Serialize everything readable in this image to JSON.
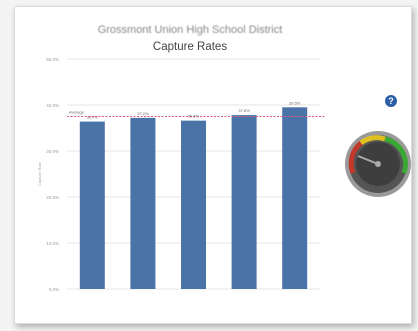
{
  "header": {
    "title_line1": "Grossmont Union High School District",
    "title_line2": "Capture Rates"
  },
  "help_button": {
    "icon": "help-icon",
    "label": "?"
  },
  "gauge": {
    "icon": "gauge-icon",
    "colors": {
      "red": "#c0392b",
      "yellow": "#e0c020",
      "green": "#3aa832"
    }
  },
  "chart_data": {
    "type": "bar",
    "categories": [
      "",
      "",
      "",
      "",
      ""
    ],
    "values": [
      36.4,
      37.2,
      36.6,
      37.8,
      39.5
    ],
    "data_labels": [
      "36.4%",
      "37.2%",
      "36.6%",
      "37.8%",
      "39.5%"
    ],
    "ylabel": "Capture Rate",
    "ylim": [
      0,
      50
    ],
    "yticks": [
      0,
      10,
      20,
      30,
      40,
      50
    ],
    "ytick_labels": [
      "0.0%",
      "10.0%",
      "20.0%",
      "30.0%",
      "40.0%",
      "50.0%"
    ],
    "reference_line": {
      "label": "Average",
      "value": 37.5
    },
    "colors": {
      "bar": "#4a73a8",
      "reference": "#e05a7a",
      "grid": "#e6e6e6"
    }
  }
}
